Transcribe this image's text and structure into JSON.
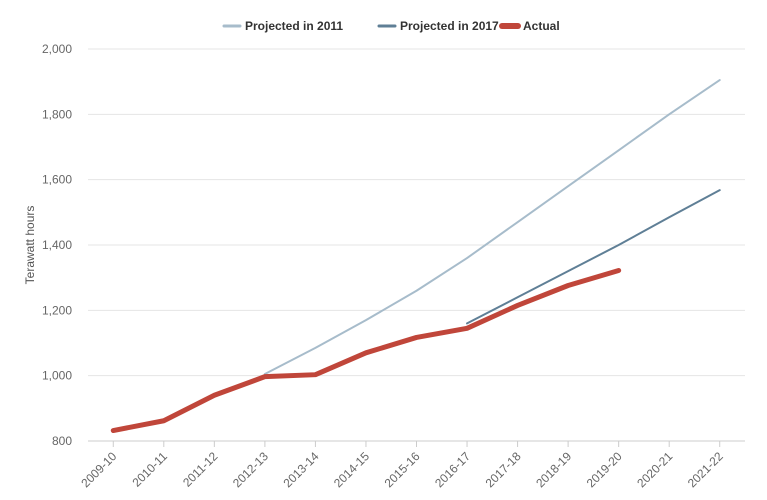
{
  "chart_data": {
    "type": "line",
    "xlabel": "",
    "ylabel": "Terawatt hours",
    "categories": [
      "2009-10",
      "2010-11",
      "2011-12",
      "2012-13",
      "2013-14",
      "2014-15",
      "2015-16",
      "2016-17",
      "2017-18",
      "2018-19",
      "2019-20",
      "2020-21",
      "2021-22"
    ],
    "ylim": [
      800,
      2000
    ],
    "yticks": [
      800,
      1000,
      1200,
      1400,
      1600,
      1800,
      2000
    ],
    "ytick_labels": [
      "800",
      "1,000",
      "1,200",
      "1,400",
      "1,600",
      "1,800",
      "2,000"
    ],
    "grid": true,
    "legend_position": "top-center",
    "series": [
      {
        "name": "Projected in 2011",
        "color": "#a7bccb",
        "values": [
          null,
          null,
          null,
          1005,
          1085,
          1170,
          1260,
          1360,
          1470,
          1580,
          1690,
          1800,
          1905
        ]
      },
      {
        "name": "Projected in 2017",
        "color": "#5f7f96",
        "values": [
          null,
          null,
          null,
          null,
          null,
          null,
          null,
          1160,
          1240,
          1320,
          1400,
          1485,
          1568
        ]
      },
      {
        "name": "Actual",
        "color": "#c0463a",
        "values": [
          832,
          862,
          940,
          997,
          1003,
          1070,
          1117,
          1145,
          1215,
          1276,
          1322,
          null,
          null
        ]
      }
    ]
  }
}
